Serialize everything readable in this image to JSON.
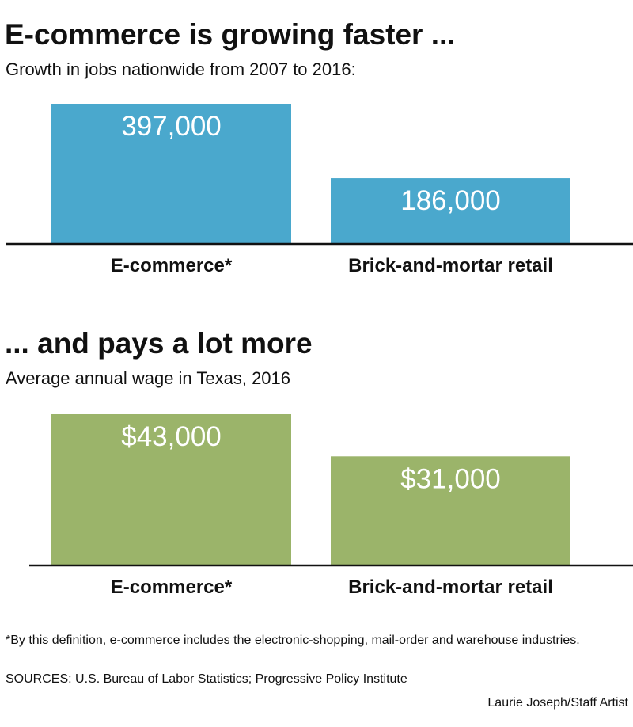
{
  "chart_data": [
    {
      "type": "bar",
      "title": "E-commerce is growing faster ...",
      "subtitle": "Growth in jobs nationwide from 2007 to 2016:",
      "categories": [
        "E-commerce*",
        "Brick-and-mortar retail"
      ],
      "values": [
        397000,
        186000
      ],
      "value_labels": [
        "397,000",
        "186,000"
      ],
      "ylim": [
        0,
        397000
      ],
      "bar_color": "#4aa8cd",
      "grid": false
    },
    {
      "type": "bar",
      "title": "... and pays a lot more",
      "subtitle": "Average annual wage in Texas, 2016",
      "categories": [
        "E-commerce*",
        "Brick-and-mortar retail"
      ],
      "values": [
        43000,
        31000
      ],
      "value_labels": [
        "$43,000",
        "$31,000"
      ],
      "ylim": [
        0,
        43000
      ],
      "bar_color": "#9bb46a",
      "grid": false
    }
  ],
  "footer": {
    "footnote": "*By this definition, e-commerce includes the electronic-shopping, mail-order and warehouse industries.",
    "sources": "SOURCES: U.S. Bureau of Labor Statistics; Progressive Policy Institute",
    "credit": "Laurie Joseph/Staff Artist"
  }
}
